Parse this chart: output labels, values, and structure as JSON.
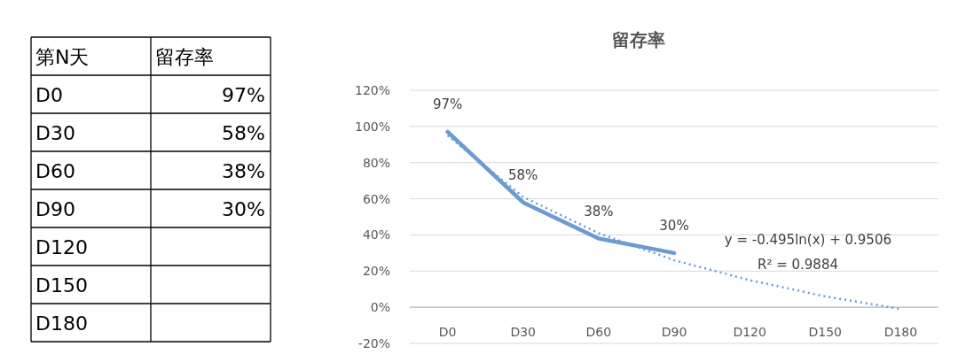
{
  "chart_data": {
    "type": "line",
    "title": "留存率",
    "categories": [
      "D0",
      "D30",
      "D60",
      "D90",
      "D120",
      "D150",
      "D180"
    ],
    "series": [
      {
        "color": "#6b9bd2",
        "values": [
          97,
          58,
          38,
          30,
          null,
          null,
          null
        ],
        "value_labels": [
          "97%",
          "58%",
          "38%",
          "30%",
          null,
          null,
          null
        ],
        "line_style": "solid"
      },
      {
        "type": "line",
        "color": "#6b9bd2",
        "values": [
          95,
          61,
          41,
          26,
          15,
          6,
          -1
        ],
        "line_style": "dotted"
      }
    ],
    "ylim": [
      -20,
      120
    ],
    "yticks": [
      {
        "value": -20,
        "label": "-20%"
      },
      {
        "value": 0,
        "label": "0%"
      },
      {
        "value": 20,
        "label": "20%"
      },
      {
        "value": 40,
        "label": "40%"
      },
      {
        "value": 60,
        "label": "60%"
      },
      {
        "value": 80,
        "label": "80%"
      },
      {
        "value": 100,
        "label": "100%"
      },
      {
        "value": 120,
        "label": "120%"
      }
    ],
    "grid": "y",
    "marker": "none",
    "annotations": [
      "第N天",
      "留存率",
      "y = -0.495ln(x) + 0.9506",
      "R² = 0.9884"
    ]
  }
}
